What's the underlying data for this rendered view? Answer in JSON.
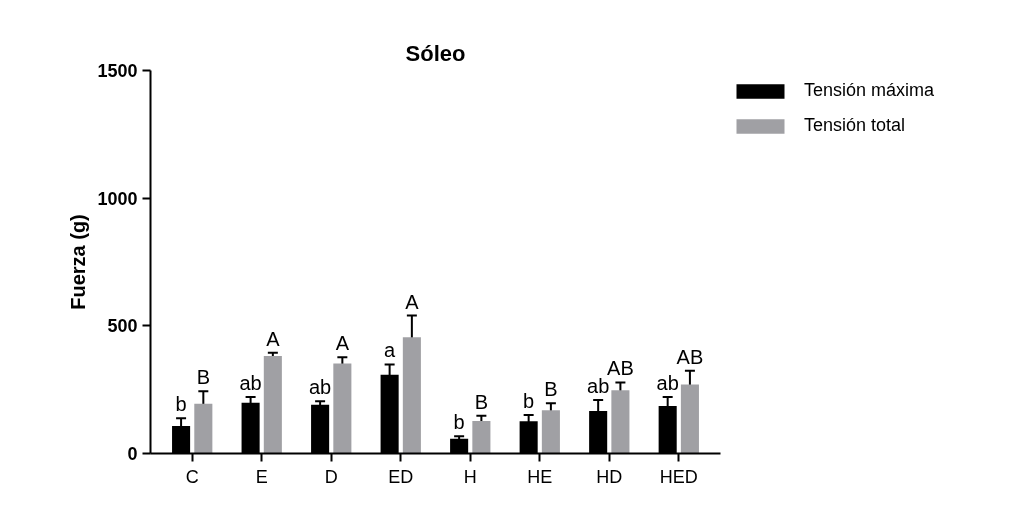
{
  "chart_data": {
    "type": "bar",
    "title": "Sóleo",
    "ylabel": "Fuerza (g)",
    "categories": [
      "C",
      "E",
      "D",
      "ED",
      "H",
      "HE",
      "HD",
      "HED"
    ],
    "series": [
      {
        "name": "Tensión máxima",
        "color": "#000000",
        "values": [
          108,
          199,
          191,
          308,
          58,
          126,
          166,
          186
        ],
        "errors": [
          30,
          22,
          14,
          41,
          10,
          25,
          44,
          35
        ],
        "value_labels": [
          "b",
          "ab",
          "ab",
          "a",
          "b",
          "b",
          "ab",
          "ab"
        ]
      },
      {
        "name": "Tensión total",
        "color": "#a0a0a4",
        "values": [
          195,
          382,
          352,
          455,
          127,
          169,
          248,
          270
        ],
        "errors": [
          49,
          13,
          25,
          85,
          21,
          28,
          30,
          54
        ],
        "value_labels": [
          "B",
          "A",
          "A",
          "A",
          "B",
          "B",
          "AB",
          "AB"
        ]
      }
    ],
    "ylim": [
      0,
      1500
    ],
    "yticks": [
      0,
      500,
      1000,
      1500
    ],
    "grid": false,
    "legend": "top right"
  }
}
